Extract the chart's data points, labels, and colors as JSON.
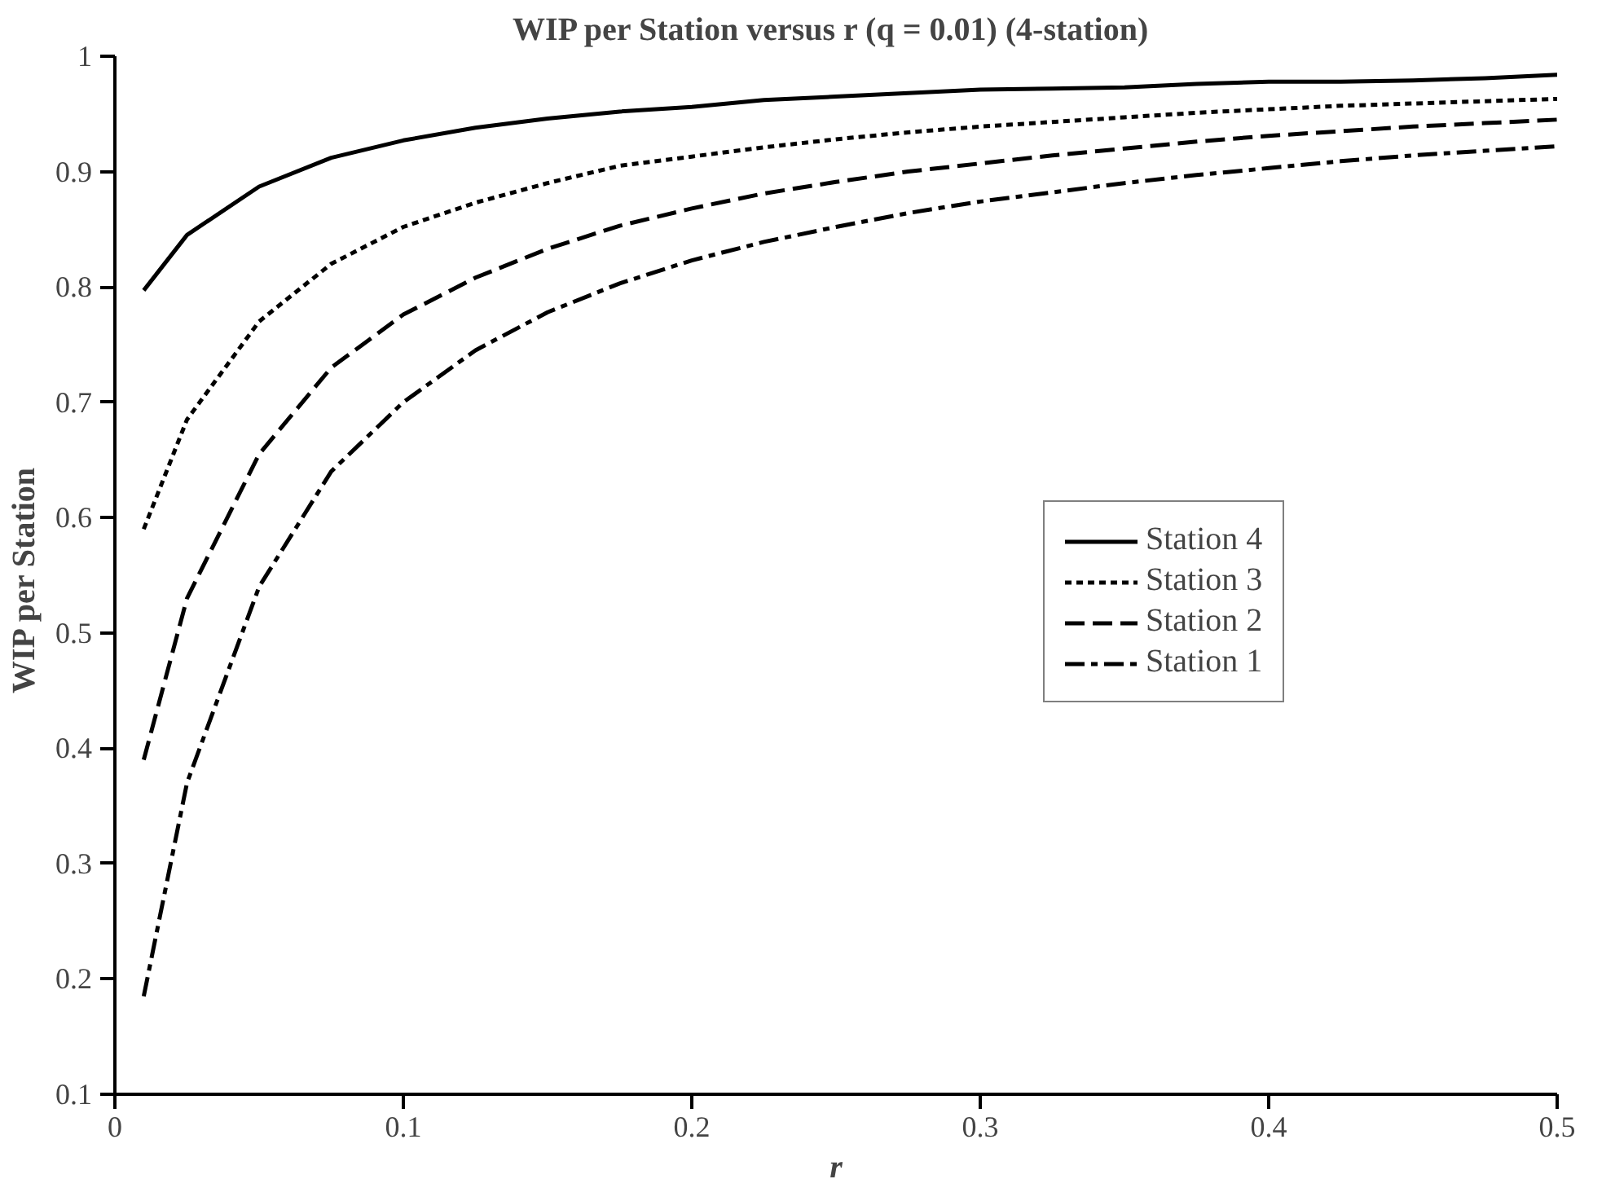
{
  "chart_data": {
    "type": "line",
    "title": "WIP  per Station versus r (q = 0.01) (4-station)",
    "xlabel": "r",
    "ylabel": "WIP  per Station",
    "x": [
      0.01,
      0.025,
      0.05,
      0.075,
      0.1,
      0.125,
      0.15,
      0.175,
      0.2,
      0.225,
      0.25,
      0.275,
      0.3,
      0.325,
      0.35,
      0.375,
      0.4,
      0.425,
      0.45,
      0.475,
      0.5
    ],
    "series": [
      {
        "name": "Station 4",
        "color": "#000000",
        "line_style": "solid",
        "values": [
          0.797,
          0.845,
          0.887,
          0.912,
          0.927,
          0.938,
          0.946,
          0.952,
          0.956,
          0.962,
          0.965,
          0.968,
          0.971,
          0.972,
          0.973,
          0.976,
          0.978,
          0.978,
          0.979,
          0.981,
          0.984
        ]
      },
      {
        "name": "Station 3",
        "color": "#000000",
        "line_style": "dotted",
        "values": [
          0.59,
          0.685,
          0.77,
          0.82,
          0.852,
          0.873,
          0.89,
          0.905,
          0.913,
          0.921,
          0.928,
          0.934,
          0.939,
          0.943,
          0.947,
          0.951,
          0.954,
          0.957,
          0.959,
          0.961,
          0.963
        ]
      },
      {
        "name": "Station 2",
        "color": "#000000",
        "line_style": "dashed",
        "values": [
          0.39,
          0.53,
          0.655,
          0.73,
          0.776,
          0.808,
          0.833,
          0.853,
          0.868,
          0.881,
          0.891,
          0.9,
          0.907,
          0.914,
          0.92,
          0.926,
          0.931,
          0.935,
          0.939,
          0.942,
          0.945
        ]
      },
      {
        "name": "Station 1",
        "color": "#000000",
        "line_style": "dashdot",
        "values": [
          0.185,
          0.37,
          0.54,
          0.64,
          0.7,
          0.745,
          0.778,
          0.803,
          0.823,
          0.839,
          0.852,
          0.864,
          0.874,
          0.882,
          0.89,
          0.897,
          0.903,
          0.909,
          0.914,
          0.918,
          0.922
        ]
      }
    ],
    "xlim": [
      0,
      0.5
    ],
    "ylim": [
      0.1,
      1
    ],
    "xticks": [
      0,
      0.1,
      0.2,
      0.3,
      0.4,
      0.5
    ],
    "yticks": [
      0.1,
      0.2,
      0.3,
      0.4,
      0.5,
      0.6,
      0.7,
      0.8,
      0.9,
      1
    ],
    "grid": false,
    "legend": "right",
    "marker": "none"
  }
}
